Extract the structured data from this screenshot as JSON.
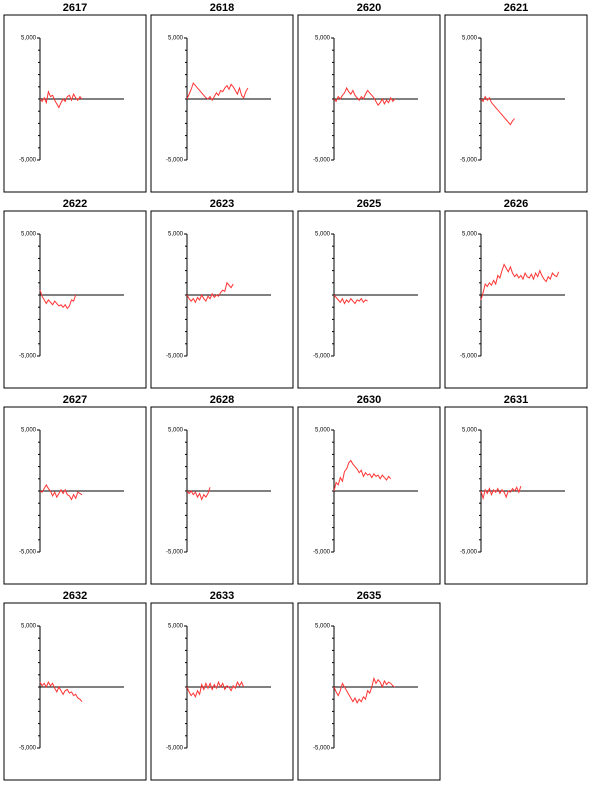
{
  "chart_data": [
    {
      "type": "line",
      "title": "2617",
      "color": "#ff3333",
      "ylim": [
        -5000,
        5000
      ],
      "yticks": [
        {
          "value": 5000,
          "label": "5,000"
        },
        {
          "value": -5000,
          "label": "-5,000"
        }
      ],
      "minor_yticks": [
        4000,
        3000,
        2000,
        1000,
        0,
        -1000,
        -2000,
        -3000,
        -4000
      ],
      "values": [
        0,
        -200,
        100,
        -300,
        600,
        200,
        300,
        -100,
        -400,
        -700,
        -300,
        0,
        -200,
        200,
        300,
        -100,
        400,
        100,
        -100,
        200,
        0
      ]
    },
    {
      "type": "line",
      "title": "2618",
      "color": "#ff3333",
      "ylim": [
        -5000,
        5000
      ],
      "yticks": [
        {
          "value": 5000,
          "label": "5,000"
        },
        {
          "value": -5000,
          "label": "-5,000"
        }
      ],
      "minor_yticks": [
        4000,
        3000,
        2000,
        1000,
        0,
        -1000,
        -2000,
        -3000,
        -4000
      ],
      "values": [
        0,
        400,
        800,
        1300,
        1100,
        900,
        700,
        500,
        300,
        100,
        0,
        200,
        -100,
        200,
        500,
        300,
        700,
        600,
        900,
        1100,
        800,
        1200,
        1000,
        700,
        400,
        900,
        300,
        100,
        600,
        900
      ]
    },
    {
      "type": "line",
      "title": "2620",
      "color": "#ff3333",
      "ylim": [
        -5000,
        5000
      ],
      "yticks": [
        {
          "value": 5000,
          "label": "5,000"
        },
        {
          "value": -5000,
          "label": "-5,000"
        }
      ],
      "minor_yticks": [
        4000,
        3000,
        2000,
        1000,
        0,
        -1000,
        -2000,
        -3000,
        -4000
      ],
      "values": [
        0,
        -200,
        200,
        0,
        300,
        500,
        900,
        600,
        400,
        700,
        300,
        100,
        -100,
        200,
        0,
        400,
        700,
        500,
        300,
        100,
        -200,
        -500,
        -300,
        0,
        -400,
        -100,
        -300,
        100,
        -200,
        0
      ]
    },
    {
      "type": "line",
      "title": "2621",
      "color": "#ff3333",
      "ylim": [
        -5000,
        5000
      ],
      "yticks": [
        {
          "value": 5000,
          "label": "5,000"
        },
        {
          "value": -5000,
          "label": "-5,000"
        }
      ],
      "minor_yticks": [
        4000,
        3000,
        2000,
        1000,
        0,
        -1000,
        -2000,
        -3000,
        -4000
      ],
      "values": [
        0,
        -200,
        200,
        -100,
        100,
        -300,
        -500,
        -700,
        -900,
        -1100,
        -1300,
        -1500,
        -1700,
        -1900,
        -2100,
        -1800,
        -1600
      ]
    },
    {
      "type": "line",
      "title": "2622",
      "color": "#ff3333",
      "ylim": [
        -5000,
        5000
      ],
      "yticks": [
        {
          "value": 5000,
          "label": "5,000"
        },
        {
          "value": -5000,
          "label": "-5,000"
        }
      ],
      "minor_yticks": [
        4000,
        3000,
        2000,
        1000,
        0,
        -1000,
        -2000,
        -3000,
        -4000
      ],
      "values": [
        400,
        -100,
        -400,
        -700,
        -400,
        -600,
        -800,
        -500,
        -700,
        -900,
        -800,
        -1000,
        -800,
        -1100,
        -900,
        -400,
        -500,
        0
      ]
    },
    {
      "type": "line",
      "title": "2623",
      "color": "#ff3333",
      "ylim": [
        -5000,
        5000
      ],
      "yticks": [
        {
          "value": 5000,
          "label": "5,000"
        },
        {
          "value": -5000,
          "label": "-5,000"
        }
      ],
      "minor_yticks": [
        4000,
        3000,
        2000,
        1000,
        0,
        -1000,
        -2000,
        -3000,
        -4000
      ],
      "values": [
        0,
        -300,
        -500,
        -300,
        -600,
        -200,
        -400,
        0,
        -300,
        -500,
        -100,
        -300,
        100,
        -200,
        0,
        -100,
        200,
        400,
        300,
        1000,
        800,
        600,
        900
      ]
    },
    {
      "type": "line",
      "title": "2625",
      "color": "#ff3333",
      "ylim": [
        -5000,
        5000
      ],
      "yticks": [
        {
          "value": 5000,
          "label": "5,000"
        },
        {
          "value": -5000,
          "label": "-5,000"
        }
      ],
      "minor_yticks": [
        4000,
        3000,
        2000,
        1000,
        0,
        -1000,
        -2000,
        -3000,
        -4000
      ],
      "values": [
        0,
        -200,
        -400,
        -600,
        -300,
        -700,
        -400,
        -600,
        -300,
        -500,
        -700,
        -400,
        -500,
        -300,
        -600,
        -400,
        -500
      ]
    },
    {
      "type": "line",
      "title": "2626",
      "color": "#ff3333",
      "ylim": [
        -5000,
        5000
      ],
      "yticks": [
        {
          "value": 5000,
          "label": "5,000"
        },
        {
          "value": -5000,
          "label": "-5,000"
        }
      ],
      "minor_yticks": [
        4000,
        3000,
        2000,
        1000,
        0,
        -1000,
        -2000,
        -3000,
        -4000
      ],
      "values": [
        -400,
        200,
        900,
        700,
        1000,
        800,
        1200,
        900,
        1600,
        1400,
        2000,
        2500,
        2200,
        1900,
        2300,
        1800,
        1500,
        1700,
        1400,
        1600,
        1300,
        1800,
        1500,
        1400,
        1700,
        1300,
        1800,
        1500,
        2000,
        1600,
        1300,
        1100,
        1500,
        1300,
        1800,
        1600,
        1500,
        1900
      ]
    },
    {
      "type": "line",
      "title": "2627",
      "color": "#ff3333",
      "ylim": [
        -5000,
        5000
      ],
      "yticks": [
        {
          "value": 5000,
          "label": "5,000"
        },
        {
          "value": -5000,
          "label": "-5,000"
        }
      ],
      "minor_yticks": [
        4000,
        3000,
        2000,
        1000,
        0,
        -1000,
        -2000,
        -3000,
        -4000
      ],
      "values": [
        0,
        -100,
        200,
        500,
        200,
        0,
        -400,
        -100,
        -500,
        -200,
        100,
        -200,
        100,
        -300,
        -400,
        -700,
        -300,
        -600,
        -100,
        -200,
        -300
      ]
    },
    {
      "type": "line",
      "title": "2628",
      "color": "#ff3333",
      "ylim": [
        -5000,
        5000
      ],
      "yticks": [
        {
          "value": 5000,
          "label": "5,000"
        },
        {
          "value": -5000,
          "label": "-5,000"
        }
      ],
      "minor_yticks": [
        4000,
        3000,
        2000,
        1000,
        0,
        -1000,
        -2000,
        -3000,
        -4000
      ],
      "values": [
        0,
        -200,
        0,
        -300,
        -100,
        -500,
        -200,
        -700,
        -300,
        -500,
        -200,
        300
      ]
    },
    {
      "type": "line",
      "title": "2630",
      "color": "#ff3333",
      "ylim": [
        -5000,
        5000
      ],
      "yticks": [
        {
          "value": 5000,
          "label": "5,000"
        },
        {
          "value": -5000,
          "label": "-5,000"
        }
      ],
      "minor_yticks": [
        4000,
        3000,
        2000,
        1000,
        0,
        -1000,
        -2000,
        -3000,
        -4000
      ],
      "values": [
        0,
        700,
        500,
        1100,
        800,
        1600,
        1800,
        2300,
        2500,
        2200,
        2000,
        1800,
        1500,
        1700,
        1200,
        1500,
        1300,
        1400,
        1100,
        1400,
        1200,
        1300,
        1000,
        1300,
        1100,
        900,
        1200,
        1000
      ]
    },
    {
      "type": "line",
      "title": "2631",
      "color": "#ff3333",
      "ylim": [
        -5000,
        5000
      ],
      "yticks": [
        {
          "value": 5000,
          "label": "5,000"
        },
        {
          "value": -5000,
          "label": "-5,000"
        }
      ],
      "minor_yticks": [
        4000,
        3000,
        2000,
        1000,
        0,
        -1000,
        -2000,
        -3000,
        -4000
      ],
      "values": [
        0,
        -600,
        100,
        -200,
        200,
        -300,
        100,
        -100,
        200,
        -200,
        100,
        -100,
        -500,
        0,
        -100,
        200,
        0,
        300,
        -100,
        400
      ]
    },
    {
      "type": "line",
      "title": "2632",
      "color": "#ff3333",
      "ylim": [
        -5000,
        5000
      ],
      "yticks": [
        {
          "value": 5000,
          "label": "5,000"
        },
        {
          "value": -5000,
          "label": "-5,000"
        }
      ],
      "minor_yticks": [
        4000,
        3000,
        2000,
        1000,
        0,
        -1000,
        -2000,
        -3000,
        -4000
      ],
      "values": [
        400,
        100,
        300,
        0,
        400,
        100,
        300,
        -100,
        -400,
        0,
        -300,
        -600,
        -300,
        -200,
        -500,
        -400,
        -700,
        -600,
        -900,
        -1000,
        -1200
      ]
    },
    {
      "type": "line",
      "title": "2633",
      "color": "#ff3333",
      "ylim": [
        -5000,
        5000
      ],
      "yticks": [
        {
          "value": 5000,
          "label": "5,000"
        },
        {
          "value": -5000,
          "label": "-5,000"
        }
      ],
      "minor_yticks": [
        4000,
        3000,
        2000,
        1000,
        0,
        -1000,
        -2000,
        -3000,
        -4000
      ],
      "values": [
        0,
        -400,
        -700,
        -500,
        -800,
        -300,
        -600,
        200,
        -200,
        300,
        -100,
        300,
        -200,
        200,
        -100,
        400,
        0,
        300,
        -200,
        100,
        0,
        -300,
        100,
        -100,
        400,
        100,
        400,
        0
      ]
    },
    {
      "type": "line",
      "title": "2635",
      "color": "#ff3333",
      "ylim": [
        -5000,
        5000
      ],
      "yticks": [
        {
          "value": 5000,
          "label": "5,000"
        },
        {
          "value": -5000,
          "label": "-5,000"
        }
      ],
      "minor_yticks": [
        4000,
        3000,
        2000,
        1000,
        0,
        -1000,
        -2000,
        -3000,
        -4000
      ],
      "values": [
        0,
        -400,
        -700,
        -300,
        300,
        0,
        -300,
        -600,
        -900,
        -1200,
        -900,
        -1300,
        -1000,
        -1200,
        -800,
        -1000,
        -300,
        -500,
        0,
        700,
        300,
        600,
        400,
        0,
        500,
        200,
        400,
        300,
        100,
        0
      ]
    }
  ]
}
